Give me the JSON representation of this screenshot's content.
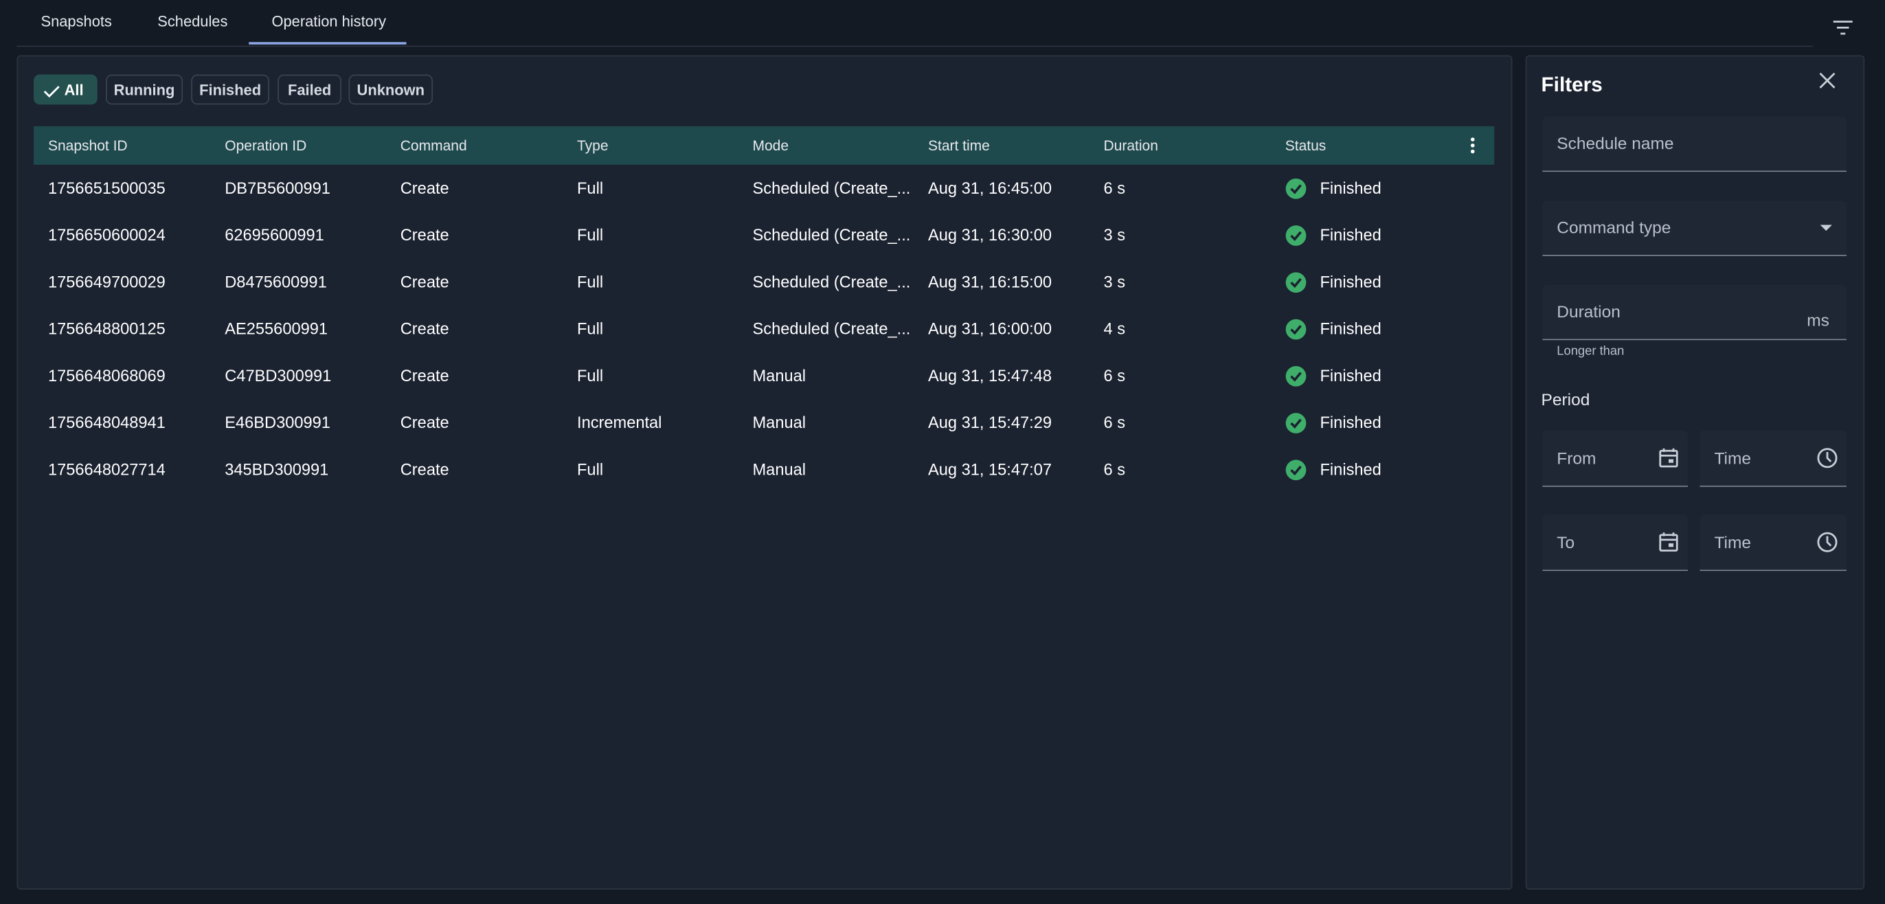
{
  "tabs": [
    "Snapshots",
    "Schedules",
    "Operation history"
  ],
  "chips": [
    "All",
    "Running",
    "Finished",
    "Failed",
    "Unknown"
  ],
  "table": {
    "columns": [
      "Snapshot ID",
      "Operation ID",
      "Command",
      "Type",
      "Mode",
      "Start time",
      "Duration",
      "Status"
    ],
    "rows": [
      [
        "1756651500035",
        "DB7B5600991",
        "Create",
        "Full",
        "Scheduled (Create_...",
        "Aug 31, 16:45:00",
        "6 s",
        "Finished"
      ],
      [
        "1756650600024",
        "62695600991",
        "Create",
        "Full",
        "Scheduled (Create_...",
        "Aug 31, 16:30:00",
        "3 s",
        "Finished"
      ],
      [
        "1756649700029",
        "D8475600991",
        "Create",
        "Full",
        "Scheduled (Create_...",
        "Aug 31, 16:15:00",
        "3 s",
        "Finished"
      ],
      [
        "1756648800125",
        "AE255600991",
        "Create",
        "Full",
        "Scheduled (Create_...",
        "Aug 31, 16:00:00",
        "4 s",
        "Finished"
      ],
      [
        "1756648068069",
        "C47BD300991",
        "Create",
        "Full",
        "Manual",
        "Aug 31, 15:47:48",
        "6 s",
        "Finished"
      ],
      [
        "1756648048941",
        "E46BD300991",
        "Create",
        "Incremental",
        "Manual",
        "Aug 31, 15:47:29",
        "6 s",
        "Finished"
      ],
      [
        "1756648027714",
        "345BD300991",
        "Create",
        "Full",
        "Manual",
        "Aug 31, 15:47:07",
        "6 s",
        "Finished"
      ]
    ]
  },
  "filters": {
    "title": "Filters",
    "schedule_name": "Schedule name",
    "command_type": "Command type",
    "duration": "Duration",
    "duration_unit": "ms",
    "duration_helper": "Longer than",
    "period": "Period",
    "from": "From",
    "to": "To",
    "time": "Time"
  }
}
